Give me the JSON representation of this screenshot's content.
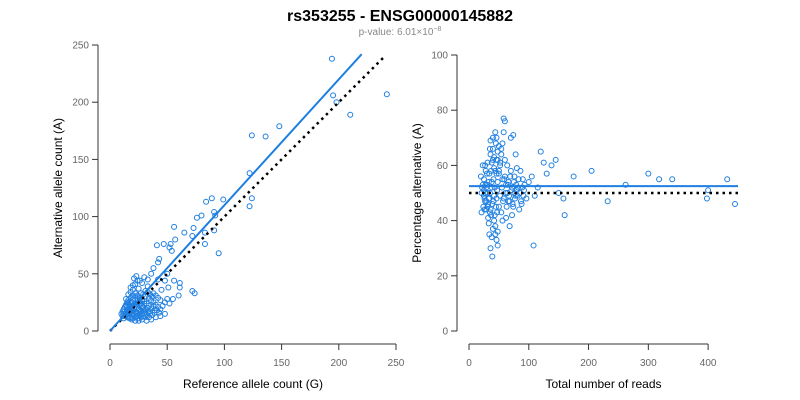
{
  "title": "rs353255 - ENSG00000145882",
  "subtitle": {
    "prefix": "p-value: 6.01×10",
    "exponent": "−8"
  },
  "colors": {
    "points": "#1f7fe0",
    "fit": "#1f7fe0",
    "reference": "#000000"
  },
  "chart_data": [
    {
      "type": "scatter",
      "xlabel": "Reference allele count (G)",
      "ylabel": "Alternative allele count (A)",
      "xlim": [
        0,
        250
      ],
      "ylim": [
        0,
        250
      ],
      "xticks": [
        0,
        50,
        100,
        150,
        200,
        250
      ],
      "yticks": [
        0,
        50,
        100,
        150,
        200,
        250
      ],
      "grid": false,
      "fit_line": {
        "x": [
          0,
          220
        ],
        "y": [
          0,
          242
        ]
      },
      "reference_line": {
        "x": [
          0,
          240
        ],
        "y": [
          0,
          240
        ]
      },
      "points": [
        [
          194,
          238
        ],
        [
          195,
          206
        ],
        [
          198,
          200
        ],
        [
          210,
          189
        ],
        [
          242,
          207
        ],
        [
          148,
          179
        ],
        [
          136,
          170
        ],
        [
          124,
          171
        ],
        [
          122,
          138
        ],
        [
          122,
          109
        ],
        [
          124,
          116
        ],
        [
          99,
          115
        ],
        [
          84,
          113
        ],
        [
          89,
          116
        ],
        [
          91,
          104
        ],
        [
          92,
          101
        ],
        [
          76,
          99
        ],
        [
          80,
          101
        ],
        [
          83,
          86
        ],
        [
          83,
          76
        ],
        [
          91,
          88
        ],
        [
          95,
          68
        ],
        [
          73,
          90
        ],
        [
          72,
          83
        ],
        [
          65,
          86
        ],
        [
          56,
          91
        ],
        [
          57,
          80
        ],
        [
          53,
          76
        ],
        [
          47,
          76
        ],
        [
          52,
          73
        ],
        [
          54,
          70
        ],
        [
          41,
          75
        ],
        [
          42,
          60
        ],
        [
          43,
          63
        ],
        [
          50,
          50
        ],
        [
          42,
          45
        ],
        [
          48,
          44
        ],
        [
          56,
          44
        ],
        [
          61,
          42
        ],
        [
          51,
          38
        ],
        [
          45,
          36
        ],
        [
          61,
          38
        ],
        [
          72,
          35
        ],
        [
          74,
          33
        ],
        [
          60,
          31
        ],
        [
          55,
          28
        ],
        [
          38,
          33
        ],
        [
          31,
          35
        ],
        [
          33,
          39
        ],
        [
          36,
          50
        ],
        [
          38,
          55
        ],
        [
          33,
          45
        ],
        [
          28,
          42
        ],
        [
          30,
          47
        ],
        [
          24,
          44
        ],
        [
          21,
          46
        ],
        [
          22,
          41
        ],
        [
          18,
          38
        ],
        [
          20,
          36
        ],
        [
          25,
          37
        ],
        [
          27,
          33
        ],
        [
          29,
          32
        ],
        [
          31,
          30
        ],
        [
          34,
          29
        ],
        [
          36,
          27
        ],
        [
          38,
          25
        ],
        [
          40,
          23
        ],
        [
          42,
          21
        ],
        [
          44,
          19
        ],
        [
          39,
          18
        ],
        [
          35,
          17
        ],
        [
          33,
          20
        ],
        [
          30,
          24
        ],
        [
          28,
          27
        ],
        [
          26,
          29
        ],
        [
          24,
          31
        ],
        [
          22,
          33
        ],
        [
          20,
          31
        ],
        [
          18,
          29
        ],
        [
          16,
          27
        ],
        [
          15,
          25
        ],
        [
          14,
          23
        ],
        [
          13,
          21
        ],
        [
          12,
          19
        ],
        [
          11,
          17
        ],
        [
          12,
          15
        ],
        [
          14,
          14
        ],
        [
          16,
          13
        ],
        [
          18,
          12
        ],
        [
          20,
          11
        ],
        [
          22,
          12
        ],
        [
          24,
          13
        ],
        [
          26,
          14
        ],
        [
          28,
          15
        ],
        [
          30,
          16
        ],
        [
          32,
          14
        ],
        [
          34,
          12
        ],
        [
          36,
          10
        ],
        [
          40,
          12
        ],
        [
          44,
          13
        ],
        [
          48,
          15
        ],
        [
          32,
          9
        ],
        [
          28,
          10
        ],
        [
          25,
          9
        ],
        [
          22,
          9
        ],
        [
          19,
          10
        ],
        [
          17,
          11
        ],
        [
          15,
          12
        ],
        [
          13,
          13
        ],
        [
          14,
          16
        ],
        [
          16,
          18
        ],
        [
          18,
          20
        ],
        [
          20,
          22
        ],
        [
          22,
          24
        ],
        [
          24,
          26
        ],
        [
          26,
          22
        ],
        [
          28,
          20
        ],
        [
          30,
          18
        ],
        [
          27,
          17
        ],
        [
          25,
          19
        ],
        [
          23,
          21
        ],
        [
          21,
          23
        ],
        [
          19,
          25
        ],
        [
          17,
          23
        ],
        [
          15,
          21
        ],
        [
          16,
          15
        ],
        [
          18,
          16
        ],
        [
          20,
          18
        ],
        [
          22,
          17
        ],
        [
          24,
          16
        ],
        [
          26,
          18
        ],
        [
          28,
          22
        ],
        [
          30,
          26
        ],
        [
          32,
          24
        ],
        [
          34,
          22
        ],
        [
          36,
          20
        ],
        [
          38,
          22
        ],
        [
          20,
          14
        ],
        [
          23,
          15
        ],
        [
          21,
          20
        ],
        [
          19,
          19
        ],
        [
          17,
          17
        ],
        [
          25,
          25
        ],
        [
          27,
          24
        ],
        [
          29,
          21
        ],
        [
          31,
          19
        ],
        [
          33,
          17
        ],
        [
          35,
          15
        ],
        [
          37,
          14
        ],
        [
          39,
          16
        ],
        [
          41,
          18
        ],
        [
          43,
          16
        ],
        [
          12,
          11
        ],
        [
          11,
          13
        ],
        [
          10,
          15
        ],
        [
          13,
          17
        ],
        [
          15,
          19
        ],
        [
          17,
          21
        ],
        [
          19,
          17
        ],
        [
          21,
          15
        ],
        [
          23,
          13
        ],
        [
          25,
          11
        ],
        [
          27,
          12
        ],
        [
          29,
          13
        ],
        [
          31,
          12
        ],
        [
          26,
          26
        ],
        [
          24,
          28
        ],
        [
          22,
          30
        ],
        [
          20,
          28
        ],
        [
          18,
          26
        ],
        [
          16,
          24
        ],
        [
          14,
          22
        ],
        [
          46,
          22
        ],
        [
          48,
          25
        ],
        [
          50,
          28
        ],
        [
          52,
          24
        ],
        [
          44,
          27
        ],
        [
          42,
          29
        ],
        [
          40,
          31
        ],
        [
          37,
          30
        ],
        [
          35,
          32
        ],
        [
          33,
          34
        ],
        [
          14,
          28
        ],
        [
          16,
          32
        ],
        [
          18,
          34
        ],
        [
          20,
          40
        ],
        [
          23,
          48
        ],
        [
          26,
          44
        ]
      ]
    },
    {
      "type": "scatter",
      "xlabel": "Total number of reads",
      "ylabel": "Percentage alternative (A)",
      "xlim": [
        0,
        450
      ],
      "ylim": [
        0,
        100
      ],
      "xticks": [
        0,
        100,
        200,
        300,
        400
      ],
      "yticks": [
        0,
        20,
        40,
        60,
        80,
        100
      ],
      "grid": false,
      "fit_line": {
        "y": 52.5
      },
      "reference_line": {
        "y": 50
      },
      "points": [
        [
          432,
          55
        ],
        [
          445,
          46
        ],
        [
          400,
          51
        ],
        [
          398,
          48
        ],
        [
          318,
          55
        ],
        [
          300,
          57
        ],
        [
          340,
          55
        ],
        [
          262,
          53
        ],
        [
          232,
          47
        ],
        [
          205,
          58
        ],
        [
          175,
          56
        ],
        [
          160,
          42
        ],
        [
          158,
          48
        ],
        [
          150,
          50
        ],
        [
          145,
          62
        ],
        [
          138,
          60
        ],
        [
          130,
          57
        ],
        [
          125,
          61
        ],
        [
          120,
          65
        ],
        [
          115,
          52
        ],
        [
          110,
          49
        ],
        [
          108,
          31
        ],
        [
          105,
          56
        ],
        [
          100,
          54
        ],
        [
          96,
          48
        ],
        [
          92,
          51
        ],
        [
          90,
          55
        ],
        [
          88,
          46
        ],
        [
          86,
          58
        ],
        [
          84,
          44
        ],
        [
          82,
          52
        ],
        [
          80,
          59
        ],
        [
          78,
          64
        ],
        [
          76,
          50
        ],
        [
          74,
          71
        ],
        [
          72,
          42
        ],
        [
          70,
          70
        ],
        [
          68,
          38
        ],
        [
          66,
          47
        ],
        [
          64,
          60
        ],
        [
          62,
          53
        ],
        [
          60,
          56
        ],
        [
          58,
          77
        ],
        [
          56,
          40
        ],
        [
          54,
          66
        ],
        [
          52,
          49
        ],
        [
          50,
          57
        ],
        [
          48,
          31
        ],
        [
          47,
          43
        ],
        [
          46,
          62
        ],
        [
          45,
          68
        ],
        [
          44,
          35
        ],
        [
          43,
          52
        ],
        [
          42,
          59
        ],
        [
          41,
          47
        ],
        [
          40,
          70
        ],
        [
          39,
          27
        ],
        [
          38,
          54
        ],
        [
          37,
          42
        ],
        [
          36,
          64
        ],
        [
          35,
          50
        ],
        [
          34,
          57
        ],
        [
          33,
          39
        ],
        [
          32,
          46
        ],
        [
          31,
          61
        ],
        [
          30,
          53
        ],
        [
          29,
          44
        ],
        [
          28,
          58
        ],
        [
          27,
          50
        ],
        [
          26,
          48
        ],
        [
          25,
          55
        ],
        [
          24,
          45
        ],
        [
          23,
          60
        ],
        [
          22,
          52
        ],
        [
          21,
          43
        ],
        [
          20,
          56
        ],
        [
          48,
          54
        ],
        [
          47,
          51
        ],
        [
          46,
          48
        ],
        [
          45,
          45
        ],
        [
          44,
          58
        ],
        [
          43,
          42
        ],
        [
          42,
          49
        ],
        [
          41,
          55
        ],
        [
          40,
          62
        ],
        [
          39,
          46
        ],
        [
          38,
          52
        ],
        [
          37,
          58
        ],
        [
          36,
          44
        ],
        [
          35,
          66
        ],
        [
          34,
          48
        ],
        [
          33,
          54
        ],
        [
          32,
          41
        ],
        [
          31,
          50
        ],
        [
          30,
          57
        ],
        [
          29,
          47
        ],
        [
          28,
          53
        ],
        [
          27,
          60
        ],
        [
          26,
          44
        ],
        [
          25,
          51
        ],
        [
          55,
          52
        ],
        [
          57,
          47
        ],
        [
          59,
          55
        ],
        [
          61,
          50
        ],
        [
          63,
          45
        ],
        [
          65,
          53
        ],
        [
          67,
          49
        ],
        [
          69,
          56
        ],
        [
          71,
          51
        ],
        [
          73,
          46
        ],
        [
          75,
          54
        ],
        [
          77,
          48
        ],
        [
          79,
          53
        ],
        [
          81,
          49
        ],
        [
          83,
          55
        ],
        [
          85,
          50
        ],
        [
          87,
          47
        ],
        [
          89,
          52
        ],
        [
          91,
          49
        ],
        [
          93,
          53
        ],
        [
          50,
          45
        ],
        [
          52,
          60
        ],
        [
          54,
          43
        ],
        [
          56,
          55
        ],
        [
          58,
          48
        ],
        [
          60,
          62
        ],
        [
          62,
          41
        ],
        [
          64,
          50
        ],
        [
          66,
          54
        ],
        [
          68,
          47
        ],
        [
          70,
          58
        ],
        [
          72,
          52
        ],
        [
          74,
          45
        ],
        [
          76,
          56
        ],
        [
          78,
          49
        ],
        [
          80,
          51
        ],
        [
          48,
          36
        ],
        [
          46,
          33
        ],
        [
          44,
          38
        ],
        [
          42,
          40
        ],
        [
          40,
          37
        ],
        [
          38,
          34
        ],
        [
          36,
          30
        ],
        [
          34,
          35
        ],
        [
          50,
          67
        ],
        [
          48,
          65
        ],
        [
          46,
          70
        ],
        [
          44,
          72
        ],
        [
          42,
          63
        ],
        [
          40,
          66
        ],
        [
          38,
          61
        ],
        [
          36,
          69
        ],
        [
          60,
          76
        ],
        [
          58,
          72
        ],
        [
          56,
          68
        ],
        [
          54,
          64
        ],
        [
          52,
          61
        ],
        [
          50,
          58
        ],
        [
          48,
          62
        ],
        [
          46,
          57
        ],
        [
          35,
          43
        ],
        [
          33,
          48
        ],
        [
          31,
          45
        ],
        [
          29,
          52
        ],
        [
          27,
          47
        ],
        [
          25,
          49
        ],
        [
          23,
          53
        ],
        [
          21,
          50
        ]
      ]
    }
  ]
}
